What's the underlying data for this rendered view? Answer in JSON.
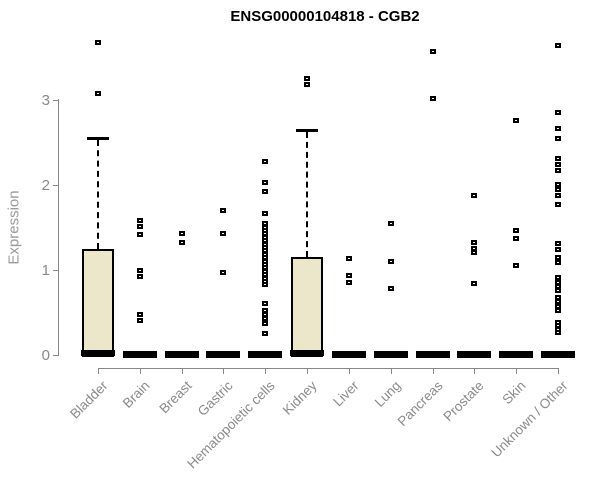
{
  "chart_data": {
    "type": "boxplot",
    "title": "ENSG00000104818 - CGB2",
    "ylabel": "Expression",
    "xlabel": "",
    "ylim": [
      0,
      3.75
    ],
    "yticks": [
      0,
      1,
      2,
      3
    ],
    "grid": false,
    "legend": "none",
    "box_fill_color": "#ECE7CB",
    "box_border_color": "#000000",
    "axis_color": "#888888",
    "label_color": "#8a8a8a",
    "categories": [
      "Bladder",
      "Brain",
      "Breast",
      "Gastric",
      "Hematopoietic cells",
      "Kidney",
      "Liver",
      "Lung",
      "Pancreas",
      "Prostate",
      "Skin",
      "Unknown / Other"
    ],
    "boxes": [
      {
        "category": "Bladder",
        "q1": 0,
        "median": 0.02,
        "q3": 1.25,
        "whisker_low": 0,
        "whisker_high": 2.55,
        "points": [
          3.68,
          3.08
        ]
      },
      {
        "category": "Brain",
        "q1": 0,
        "median": 0,
        "q3": 0,
        "whisker_low": 0,
        "whisker_high": 0,
        "points": [
          1.59,
          1.52,
          1.42,
          1.0,
          0.93,
          0.48,
          0.41
        ]
      },
      {
        "category": "Breast",
        "q1": 0,
        "median": 0,
        "q3": 0,
        "whisker_low": 0,
        "whisker_high": 0,
        "points": [
          1.44,
          1.33
        ]
      },
      {
        "category": "Gastric",
        "q1": 0,
        "median": 0,
        "q3": 0,
        "whisker_low": 0,
        "whisker_high": 0,
        "points": [
          1.71,
          1.44,
          0.98
        ]
      },
      {
        "category": "Hematopoietic cells",
        "q1": 0,
        "median": 0,
        "q3": 0,
        "whisker_low": 0,
        "whisker_high": 0,
        "points": [
          2.28,
          2.04,
          1.93,
          1.67,
          1.55,
          1.51,
          1.47,
          1.43,
          1.39,
          1.35,
          1.31,
          1.27,
          1.23,
          1.19,
          1.15,
          1.11,
          1.07,
          1.03,
          0.99,
          0.95,
          0.91,
          0.87,
          0.83,
          0.61,
          0.53,
          0.48,
          0.43,
          0.38,
          0.26
        ]
      },
      {
        "category": "Kidney",
        "q1": 0,
        "median": 0.02,
        "q3": 1.15,
        "whisker_low": 0,
        "whisker_high": 2.65,
        "points": [
          3.26,
          3.19
        ]
      },
      {
        "category": "Liver",
        "q1": 0,
        "median": 0,
        "q3": 0,
        "whisker_low": 0,
        "whisker_high": 0,
        "points": [
          1.14,
          0.94,
          0.86
        ]
      },
      {
        "category": "Lung",
        "q1": 0,
        "median": 0,
        "q3": 0,
        "whisker_low": 0,
        "whisker_high": 0,
        "points": [
          1.55,
          1.11,
          0.79
        ]
      },
      {
        "category": "Pancreas",
        "q1": 0,
        "median": 0,
        "q3": 0,
        "whisker_low": 0,
        "whisker_high": 0,
        "points": [
          3.58,
          3.02
        ]
      },
      {
        "category": "Prostate",
        "q1": 0,
        "median": 0,
        "q3": 0,
        "whisker_low": 0,
        "whisker_high": 0,
        "points": [
          1.88,
          1.33,
          1.26,
          1.21,
          0.85
        ]
      },
      {
        "category": "Skin",
        "q1": 0,
        "median": 0,
        "q3": 0,
        "whisker_low": 0,
        "whisker_high": 0,
        "points": [
          2.76,
          1.47,
          1.38,
          1.06
        ]
      },
      {
        "category": "Unknown / Other",
        "q1": 0,
        "median": 0,
        "q3": 0,
        "whisker_low": 0,
        "whisker_high": 0,
        "points": [
          3.65,
          2.86,
          2.67,
          2.55,
          2.32,
          2.25,
          2.18,
          2.01,
          1.95,
          1.88,
          1.78,
          1.32,
          1.25,
          1.15,
          1.09,
          0.92,
          0.86,
          0.81,
          0.76,
          0.68,
          0.64,
          0.58,
          0.53,
          0.39,
          0.35,
          0.31,
          0.27
        ]
      }
    ]
  }
}
